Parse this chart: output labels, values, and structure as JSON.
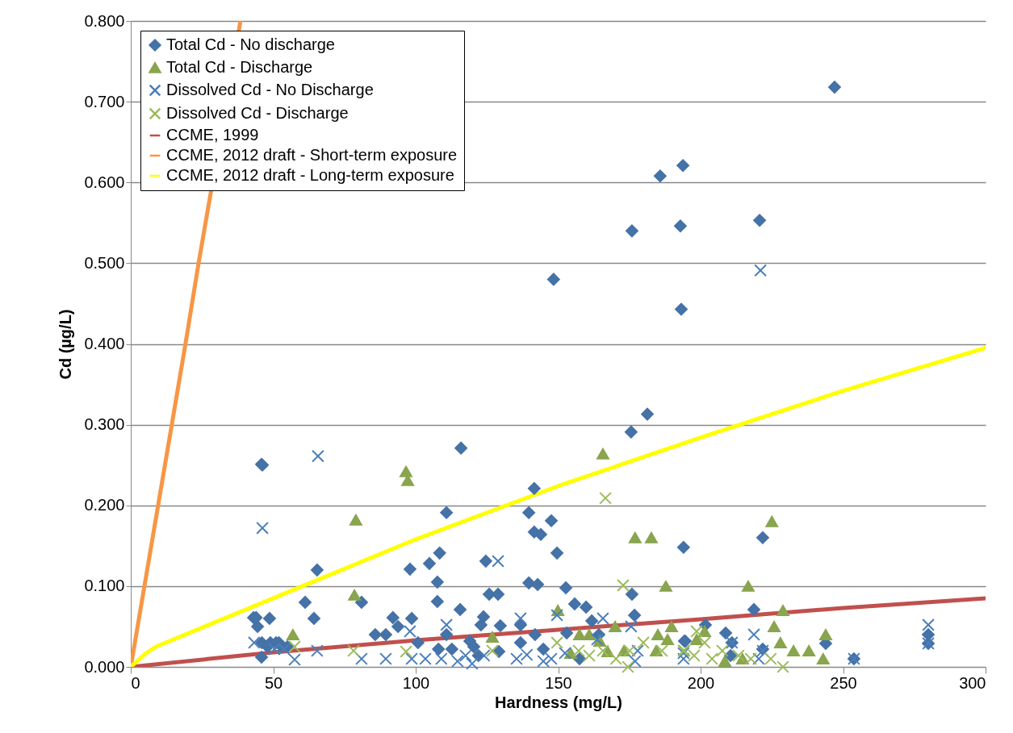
{
  "chart_data": {
    "type": "scatter",
    "xlabel": "Hardness (mg/L)",
    "ylabel": "Cd (µg/L)",
    "xlim": [
      0,
      300
    ],
    "xticks": [
      0,
      50,
      100,
      150,
      200,
      250,
      300
    ],
    "ylim": [
      0,
      0.8
    ],
    "yticks": [
      {
        "value": 0,
        "label": "0.000"
      },
      {
        "value": 0.1,
        "label": "0.100"
      },
      {
        "value": 0.2,
        "label": "0.200"
      },
      {
        "value": 0.3,
        "label": "0.300"
      },
      {
        "value": 0.4,
        "label": "0.400"
      },
      {
        "value": 0.5,
        "label": "0.500"
      },
      {
        "value": 0.6,
        "label": "0.600"
      },
      {
        "value": 0.7,
        "label": "0.700"
      },
      {
        "value": 0.8,
        "label": "0.800"
      }
    ],
    "grid": "y",
    "legend": "top left",
    "series": [
      {
        "name": "Total Cd - No discharge",
        "marker": "diamond",
        "color": "#4572a7",
        "x": [
          46.2,
          44,
          44.5,
          45.9,
          65.4,
          98,
          61.2,
          81,
          43.1,
          48.7,
          64.3,
          85.8,
          89.5,
          92,
          93.8,
          98.6,
          100.8,
          46,
          49,
          51,
          53,
          55,
          48,
          52,
          110.8,
          139.7,
          147.6,
          141.6,
          143.9,
          194,
          104.8,
          108.4,
          149.6,
          124.6,
          139.7,
          142.8,
          152.7,
          107.6,
          125.8,
          128.9,
          107.6,
          115.6,
          155.8,
          159.8,
          175.9,
          176.8,
          123.8,
          122.9,
          129.7,
          136.8,
          161.8,
          110.8,
          141.9,
          153,
          119,
          136.8,
          164.3,
          108,
          112.7,
          120.4,
          129.2,
          144.8,
          194.3,
          157.5,
          122,
          221.8,
          218.7,
          201.7,
          194.6,
          208.8,
          211,
          221.8,
          243.9,
          253.8,
          279.9,
          279.9,
          210.5,
          148.4,
          175.9,
          185.8,
          193.8,
          192.9,
          193.2,
          220.7,
          247,
          181.3,
          175.6,
          45.9,
          115.9,
          141.6
        ],
        "values": [
          0.25,
          0.061,
          0.05,
          0.012,
          0.12,
          0.121,
          0.08,
          0.08,
          0.061,
          0.06,
          0.06,
          0.04,
          0.04,
          0.061,
          0.05,
          0.06,
          0.03,
          0.03,
          0.03,
          0.03,
          0.025,
          0.025,
          0.025,
          0.03,
          0.191,
          0.191,
          0.181,
          0.167,
          0.164,
          0.148,
          0.128,
          0.141,
          0.141,
          0.131,
          0.104,
          0.102,
          0.098,
          0.105,
          0.09,
          0.09,
          0.081,
          0.071,
          0.078,
          0.074,
          0.09,
          0.064,
          0.062,
          0.052,
          0.051,
          0.052,
          0.057,
          0.04,
          0.04,
          0.042,
          0.032,
          0.03,
          0.04,
          0.022,
          0.022,
          0.025,
          0.019,
          0.022,
          0.032,
          0.01,
          0.014,
          0.16,
          0.071,
          0.052,
          0.032,
          0.042,
          0.03,
          0.022,
          0.029,
          0.01,
          0.04,
          0.029,
          0.014,
          0.48,
          0.54,
          0.608,
          0.621,
          0.546,
          0.443,
          0.553,
          0.718,
          0.313,
          0.291,
          0.251,
          0.271,
          0.221
        ]
      },
      {
        "name": "Total Cd - Discharge",
        "marker": "triangle",
        "color": "#89a54e",
        "x": [
          96.6,
          97.2,
          79,
          78.5,
          56.9,
          165.7,
          177,
          182.7,
          187.8,
          149.9,
          126.9,
          170,
          189.8,
          157.5,
          160.9,
          164.6,
          185,
          188.4,
          154.4,
          167.4,
          173.1,
          184.4,
          225,
          216.7,
          228.9,
          225.8,
          228,
          232.6,
          238,
          243.9,
          243,
          201.4,
          198.6,
          208.5,
          214.7
        ],
        "values": [
          0.242,
          0.231,
          0.182,
          0.089,
          0.04,
          0.264,
          0.16,
          0.16,
          0.1,
          0.07,
          0.037,
          0.05,
          0.05,
          0.04,
          0.04,
          0.032,
          0.04,
          0.034,
          0.017,
          0.019,
          0.02,
          0.02,
          0.18,
          0.1,
          0.07,
          0.05,
          0.03,
          0.02,
          0.02,
          0.04,
          0.01,
          0.044,
          0.034,
          0.007,
          0.01
        ]
      },
      {
        "name": "Dissolved Cd - No Discharge",
        "marker": "cross",
        "color": "#4a7ebb",
        "x": [
          46.2,
          65.7,
          221,
          128.9,
          136.8,
          110.8,
          165.7,
          149.6,
          43.3,
          65.4,
          57.5,
          81,
          89.5,
          50.4,
          53.8,
          98,
          98.6,
          103.4,
          109,
          119.8,
          124,
          139,
          144.8,
          147.6,
          152.4,
          175.6,
          177.9,
          177,
          194,
          117.5,
          114.7,
          135.4,
          163.7,
          279.9,
          253.8,
          218.7,
          221.8,
          211,
          194,
          220.4,
          279.9
        ],
        "values": [
          0.172,
          0.261,
          0.491,
          0.131,
          0.06,
          0.052,
          0.06,
          0.064,
          0.03,
          0.02,
          0.009,
          0.01,
          0.01,
          0.022,
          0.022,
          0.044,
          0.01,
          0.01,
          0.01,
          0.004,
          0.014,
          0.015,
          0.007,
          0.01,
          0.017,
          0.05,
          0.02,
          0.007,
          0.01,
          0.014,
          0.007,
          0.01,
          0.034,
          0.052,
          0.01,
          0.04,
          0.02,
          0.03,
          0.017,
          0.01,
          0.029
        ]
      },
      {
        "name": "Dissolved Cd - Discharge",
        "marker": "cross",
        "color": "#9bbb59",
        "x": [
          166.6,
          172.8,
          57.5,
          78.2,
          96.6,
          126.9,
          149.6,
          157.2,
          160.9,
          165.7,
          170.3,
          175.1,
          174.5,
          179.9,
          186.4,
          194,
          198.6,
          201.4,
          194.3,
          207.6,
          204,
          213.3,
          217.6,
          224.6,
          228.9,
          197.7
        ],
        "values": [
          0.209,
          0.101,
          0.025,
          0.02,
          0.019,
          0.02,
          0.03,
          0.02,
          0.014,
          0.02,
          0.01,
          0.02,
          0,
          0.03,
          0.02,
          0.02,
          0.044,
          0.03,
          0.02,
          0.02,
          0.01,
          0.014,
          0.01,
          0.01,
          0,
          0.014
        ]
      },
      {
        "name": "CCME, 1999",
        "type": "line",
        "marker": "none",
        "color": "#c0504d",
        "x": [
          0,
          50,
          100,
          150,
          200,
          250,
          300
        ],
        "values": [
          0,
          0.018,
          0.033,
          0.046,
          0.059,
          0.073,
          0.085
        ]
      },
      {
        "name": "CCME, 2012 draft - Short-term exposure",
        "type": "line",
        "marker": "none",
        "color": "#f79646",
        "x": [
          0,
          9.6,
          19.2,
          23.8,
          38.5
        ],
        "values": [
          0,
          0.2,
          0.4,
          0.5,
          0.8
        ]
      },
      {
        "name": "CCME, 2012 draft - Long-term exposure",
        "type": "line",
        "marker": "none",
        "color": "#ffff00",
        "x": [
          0,
          5,
          8.8,
          50,
          100,
          150,
          200,
          250,
          300
        ],
        "values": [
          0,
          0.016,
          0.025,
          0.085,
          0.158,
          0.224,
          0.284,
          0.342,
          0.395
        ]
      }
    ]
  }
}
